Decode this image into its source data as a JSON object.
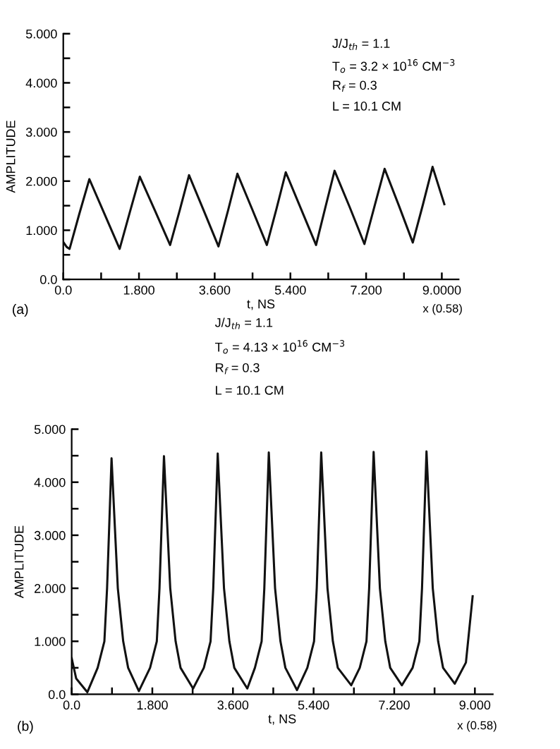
{
  "chart_data": [
    {
      "type": "line",
      "xlabel": "t, NS",
      "ylabel": "AMPLITUDE",
      "xlim": [
        0,
        9.4
      ],
      "ylim": [
        0,
        5
      ],
      "xticks": [
        {
          "value": 0,
          "label": "0.0"
        },
        {
          "value": 0.9,
          "label": null
        },
        {
          "value": 1.8,
          "label": "1.800"
        },
        {
          "value": 2.7,
          "label": null
        },
        {
          "value": 3.6,
          "label": "3.600"
        },
        {
          "value": 4.5,
          "label": null
        },
        {
          "value": 5.4,
          "label": "5.400"
        },
        {
          "value": 6.3,
          "label": null
        },
        {
          "value": 7.2,
          "label": "7.200"
        },
        {
          "value": 8.1,
          "label": null
        },
        {
          "value": 9,
          "label": "9.0000"
        }
      ],
      "yticks": [
        {
          "value": 0,
          "label": "0.0"
        },
        {
          "value": 0.5,
          "label": null
        },
        {
          "value": 1,
          "label": "1.000"
        },
        {
          "value": 1.5,
          "label": null
        },
        {
          "value": 2,
          "label": "2.000"
        },
        {
          "value": 2.5,
          "label": null
        },
        {
          "value": 3,
          "label": "3.000"
        },
        {
          "value": 3.5,
          "label": null
        },
        {
          "value": 4,
          "label": "4.000"
        },
        {
          "value": 4.5,
          "label": null
        },
        {
          "value": 5,
          "label": "5.000"
        }
      ],
      "annotations": [
        "J/J$_{th}$ = 1.1",
        "T$_{o}$ = 3.2 × 10$^{16}$ CM$^{−3}$",
        "R$_{f}$ = 0.3",
        "L = 10.1 CM",
        "x (0.58)",
        "(a)"
      ],
      "grid": false,
      "legend": false,
      "marker": "none",
      "line_style": "solid",
      "series": [
        {
          "color": "#111111",
          "x": [
            0,
            0.08,
            0.15,
            0.38,
            0.62,
            0.98,
            1.34,
            1.58,
            1.82,
            2.18,
            2.54,
            2.77,
            2.99,
            3.34,
            3.69,
            3.92,
            4.14,
            4.49,
            4.84,
            5.07,
            5.29,
            5.65,
            6.01,
            6.23,
            6.45,
            6.81,
            7.16,
            7.4,
            7.64,
            7.98,
            8.31,
            8.55,
            8.78,
            9.06
          ],
          "values": [
            0.76,
            0.66,
            0.62,
            1.33,
            2.04,
            1.33,
            0.62,
            1.36,
            2.09,
            1.4,
            0.7,
            1.41,
            2.12,
            1.4,
            0.67,
            1.41,
            2.15,
            1.43,
            0.7,
            1.44,
            2.18,
            1.44,
            0.7,
            1.46,
            2.21,
            1.47,
            0.72,
            1.49,
            2.25,
            1.5,
            0.75,
            1.52,
            2.29,
            1.53
          ]
        }
      ]
    },
    {
      "type": "line",
      "xlabel": "t, NS",
      "ylabel": "AMPLITUDE",
      "xlim": [
        0,
        9.4
      ],
      "ylim": [
        0,
        5
      ],
      "xticks": [
        {
          "value": 0,
          "label": "0.0"
        },
        {
          "value": 0.9,
          "label": null
        },
        {
          "value": 1.8,
          "label": "1.800"
        },
        {
          "value": 2.7,
          "label": null
        },
        {
          "value": 3.6,
          "label": "3.600"
        },
        {
          "value": 4.5,
          "label": null
        },
        {
          "value": 5.4,
          "label": "5.400"
        },
        {
          "value": 6.3,
          "label": null
        },
        {
          "value": 7.2,
          "label": "7.200"
        },
        {
          "value": 8.1,
          "label": null
        },
        {
          "value": 9,
          "label": "9.000"
        }
      ],
      "yticks": [
        {
          "value": 0,
          "label": "0.0"
        },
        {
          "value": 0.5,
          "label": null
        },
        {
          "value": 1,
          "label": "1.000"
        },
        {
          "value": 1.5,
          "label": null
        },
        {
          "value": 2,
          "label": "2.000"
        },
        {
          "value": 2.5,
          "label": null
        },
        {
          "value": 3,
          "label": "3.000"
        },
        {
          "value": 3.5,
          "label": null
        },
        {
          "value": 4,
          "label": "4.000"
        },
        {
          "value": 4.5,
          "label": null
        },
        {
          "value": 5,
          "label": "5.000"
        }
      ],
      "annotations": [
        "J/J$_{th}$ = 1.1",
        "T$_{o}$ = 4.13 × 10$^{16}$ CM$^{−3}$",
        "R$_{f}$ = 0.3",
        "L = 10.1 CM",
        "x (0.58)",
        "(b)"
      ],
      "grid": false,
      "legend": false,
      "marker": "none",
      "line_style": "solid",
      "series": [
        {
          "color": "#111111",
          "x": [
            0,
            0.1,
            0.35,
            0.58,
            0.73,
            0.79,
            0.89,
            1.03,
            1.15,
            1.26,
            1.5,
            1.75,
            1.9,
            1.96,
            2.06,
            2.2,
            2.32,
            2.43,
            2.71,
            2.95,
            3.1,
            3.16,
            3.26,
            3.4,
            3.52,
            3.63,
            3.92,
            4.09,
            4.24,
            4.3,
            4.4,
            4.54,
            4.66,
            4.77,
            5.03,
            5.26,
            5.41,
            5.47,
            5.57,
            5.71,
            5.83,
            5.94,
            6.24,
            6.43,
            6.58,
            6.64,
            6.74,
            6.88,
            7.0,
            7.11,
            7.37,
            7.61,
            7.76,
            7.82,
            7.92,
            8.06,
            8.18,
            8.29,
            8.55,
            8.8,
            8.95
          ],
          "values": [
            0.68,
            0.3,
            0.04,
            0.5,
            1.0,
            2.0,
            4.45,
            2.0,
            1.0,
            0.5,
            0.06,
            0.5,
            1.0,
            2.0,
            4.49,
            2.0,
            1.0,
            0.5,
            0.11,
            0.5,
            1.0,
            2.0,
            4.54,
            2.0,
            1.0,
            0.5,
            0.11,
            0.5,
            1.0,
            2.0,
            4.56,
            2.0,
            1.0,
            0.5,
            0.08,
            0.5,
            1.0,
            2.0,
            4.56,
            2.0,
            1.0,
            0.5,
            0.17,
            0.5,
            1.0,
            2.0,
            4.57,
            2.0,
            1.0,
            0.5,
            0.17,
            0.5,
            1.0,
            2.0,
            4.58,
            2.0,
            1.0,
            0.5,
            0.2,
            0.6,
            1.85
          ]
        }
      ]
    }
  ]
}
